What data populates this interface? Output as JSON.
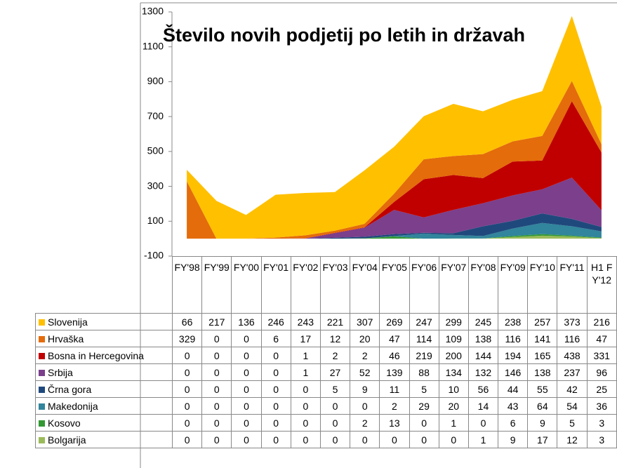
{
  "chart_data": {
    "type": "stacked_area",
    "title": "Število novih podjetij po letih in državah",
    "categories": [
      "FY'98",
      "FY'99",
      "FY'00",
      "FY'01",
      "FY'02",
      "FY'03",
      "FY'04",
      "FY'05",
      "FY'06",
      "FY'07",
      "FY'08",
      "FY'09",
      "FY'10",
      "FY'11",
      "H1 FY'12"
    ],
    "series": [
      {
        "name": "Slovenija",
        "color": "#FFC000",
        "values": [
          66,
          217,
          136,
          246,
          243,
          221,
          307,
          269,
          247,
          299,
          245,
          238,
          257,
          373,
          216
        ]
      },
      {
        "name": "Hrvaška",
        "color": "#E46C0A",
        "values": [
          329,
          0,
          0,
          6,
          17,
          12,
          20,
          47,
          114,
          109,
          138,
          116,
          141,
          116,
          47
        ]
      },
      {
        "name": "Bosna in Hercegovina",
        "color": "#C00000",
        "values": [
          0,
          0,
          0,
          0,
          1,
          2,
          2,
          46,
          219,
          200,
          144,
          194,
          165,
          438,
          331
        ]
      },
      {
        "name": "Srbija",
        "color": "#7B3F8C",
        "values": [
          0,
          0,
          0,
          0,
          1,
          27,
          52,
          139,
          88,
          134,
          132,
          146,
          138,
          237,
          96
        ]
      },
      {
        "name": "Črna gora",
        "color": "#1F497D",
        "values": [
          0,
          0,
          0,
          0,
          0,
          5,
          9,
          11,
          5,
          10,
          56,
          44,
          55,
          42,
          25
        ]
      },
      {
        "name": "Makedonija",
        "color": "#31859C",
        "values": [
          0,
          0,
          0,
          0,
          0,
          0,
          0,
          2,
          29,
          20,
          14,
          43,
          64,
          54,
          36
        ]
      },
      {
        "name": "Kosovo",
        "color": "#339933",
        "values": [
          0,
          0,
          0,
          0,
          0,
          0,
          2,
          13,
          0,
          1,
          0,
          6,
          9,
          5,
          3
        ]
      },
      {
        "name": "Bolgarija",
        "color": "#9BBB59",
        "values": [
          0,
          0,
          0,
          0,
          0,
          0,
          0,
          0,
          0,
          0,
          1,
          9,
          17,
          12,
          3
        ]
      }
    ],
    "ylim": [
      -100,
      1300
    ],
    "yticks": [
      -100,
      100,
      300,
      500,
      700,
      900,
      1100,
      1300
    ],
    "grid": false
  }
}
